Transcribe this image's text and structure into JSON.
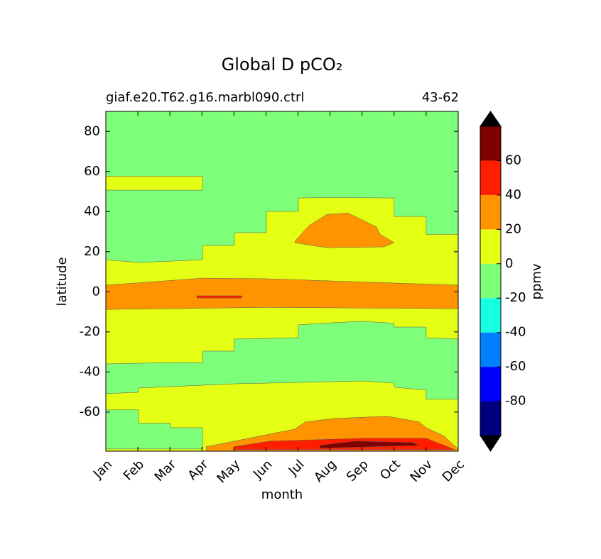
{
  "chart_data": {
    "type": "contour",
    "title": "Global D pCO₂",
    "subtitle_left": "giaf.e20.T62.g16.marbl090.ctrl",
    "subtitle_right": "43-62",
    "xlabel": "month",
    "ylabel": "latitude",
    "xlim": [
      0,
      11
    ],
    "ylim": [
      -79.5,
      90
    ],
    "xticks": [
      {
        "value": 0,
        "label": "Jan"
      },
      {
        "value": 1,
        "label": "Feb"
      },
      {
        "value": 2,
        "label": "Mar"
      },
      {
        "value": 3,
        "label": "Apr"
      },
      {
        "value": 4,
        "label": "May"
      },
      {
        "value": 5,
        "label": "Jun"
      },
      {
        "value": 6,
        "label": "Jul"
      },
      {
        "value": 7,
        "label": "Aug"
      },
      {
        "value": 8,
        "label": "Sep"
      },
      {
        "value": 9,
        "label": "Oct"
      },
      {
        "value": 10,
        "label": "Nov"
      },
      {
        "value": 11,
        "label": "Dec"
      }
    ],
    "yticks": [
      -60,
      -40,
      -20,
      0,
      20,
      40,
      60,
      80
    ],
    "background_level": -20,
    "regions": [
      {
        "level": 0,
        "points": [
          [
            0,
            16.0
          ],
          [
            1.02,
            14.6
          ],
          [
            3.02,
            16.0
          ],
          [
            3.02,
            23.1
          ],
          [
            4.01,
            23.1
          ],
          [
            4.01,
            29.5
          ],
          [
            5.01,
            29.5
          ],
          [
            5.01,
            40.1
          ],
          [
            6.01,
            40.1
          ],
          [
            6.01,
            46.8
          ],
          [
            7.01,
            47.0
          ],
          [
            9.0,
            46.8
          ],
          [
            9.0,
            37.6
          ],
          [
            10.0,
            37.6
          ],
          [
            10.0,
            28.7
          ],
          [
            11,
            28.7
          ],
          [
            11,
            -79.5
          ],
          [
            0,
            -79.5
          ]
        ]
      },
      {
        "level": 0,
        "points": [
          [
            0,
            57.7
          ],
          [
            3.02,
            57.7
          ],
          [
            3.02,
            50.7
          ],
          [
            0,
            50.7
          ]
        ]
      },
      {
        "level": -20,
        "points": [
          [
            0,
            -36.0
          ],
          [
            2.02,
            -35.3
          ],
          [
            3.02,
            -35.3
          ],
          [
            3.02,
            -29.6
          ],
          [
            4.01,
            -29.6
          ],
          [
            4.01,
            -23.6
          ],
          [
            6.01,
            -22.9
          ],
          [
            6.01,
            -16.5
          ],
          [
            7.01,
            -15.5
          ],
          [
            8.0,
            -14.7
          ],
          [
            9.0,
            -15.7
          ],
          [
            9.0,
            -17.6
          ],
          [
            10.0,
            -17.6
          ],
          [
            10.0,
            -22.9
          ],
          [
            11,
            -23.6
          ],
          [
            11,
            -53.6
          ],
          [
            10.0,
            -53.6
          ],
          [
            10.0,
            -49.0
          ],
          [
            9.0,
            -47.6
          ],
          [
            9.0,
            -45.5
          ],
          [
            8.0,
            -44.5
          ],
          [
            4.01,
            -45.9
          ],
          [
            2.02,
            -47.3
          ],
          [
            1.02,
            -48.0
          ],
          [
            1.02,
            -50.1
          ],
          [
            0,
            -50.8
          ]
        ]
      },
      {
        "level": -20,
        "points": [
          [
            0,
            -58.9
          ],
          [
            1.02,
            -58.9
          ],
          [
            1.02,
            -65.6
          ],
          [
            2.02,
            -65.6
          ],
          [
            2.02,
            -67.8
          ],
          [
            3.02,
            -67.8
          ],
          [
            3.02,
            -78.4
          ],
          [
            0,
            -78.4
          ]
        ]
      },
      {
        "level": 20,
        "points": [
          [
            0,
            3.3
          ],
          [
            3.02,
            6.8
          ],
          [
            5.01,
            6.5
          ],
          [
            11,
            3.3
          ],
          [
            11,
            -8.4
          ],
          [
            5.01,
            -7.8
          ],
          [
            0,
            -8.8
          ]
        ]
      },
      {
        "level": 40,
        "points": [
          [
            2.84,
            -2.0
          ],
          [
            4.24,
            -2.0
          ],
          [
            4.24,
            -3.1
          ],
          [
            2.84,
            -3.1
          ]
        ]
      },
      {
        "level": 20,
        "points": [
          [
            5.9,
            25.2
          ],
          [
            6.34,
            33.0
          ],
          [
            6.9,
            38.6
          ],
          [
            7.56,
            39.3
          ],
          [
            8.45,
            32.3
          ],
          [
            8.56,
            28.7
          ],
          [
            9.0,
            24.5
          ],
          [
            8.67,
            22.4
          ],
          [
            6.9,
            22.0
          ],
          [
            5.9,
            24.5
          ]
        ]
      },
      {
        "level": 20,
        "points": [
          [
            3.13,
            -77.3
          ],
          [
            4.01,
            -74.5
          ],
          [
            5.9,
            -68.5
          ],
          [
            6.23,
            -64.9
          ],
          [
            7.12,
            -63.2
          ],
          [
            8.78,
            -62.1
          ],
          [
            9.78,
            -64.9
          ],
          [
            10.0,
            -67.8
          ],
          [
            10.56,
            -72.0
          ],
          [
            11,
            -78.4
          ],
          [
            11,
            -79.5
          ],
          [
            3.13,
            -79.5
          ]
        ]
      },
      {
        "level": 40,
        "points": [
          [
            4.01,
            -77.3
          ],
          [
            5.12,
            -74.5
          ],
          [
            8.0,
            -73.1
          ],
          [
            10.0,
            -73.1
          ],
          [
            10.56,
            -76.6
          ],
          [
            10.89,
            -78.7
          ],
          [
            4.01,
            -78.7
          ]
        ]
      },
      {
        "level": 60,
        "points": [
          [
            6.68,
            -76.6
          ],
          [
            7.78,
            -74.5
          ],
          [
            9.56,
            -75.2
          ],
          [
            9.78,
            -76.6
          ],
          [
            6.68,
            -78.0
          ]
        ]
      }
    ],
    "colorbar": {
      "label": "ppmv",
      "levels": [
        -100,
        -80,
        -60,
        -40,
        -20,
        0,
        20,
        40,
        60,
        80
      ],
      "colors": [
        "#00007f",
        "#0000ff",
        "#0080ff",
        "#15ffe1",
        "#7dff7a",
        "#e4ff13",
        "#ff9400",
        "#ff1e00",
        "#7f0000"
      ],
      "under_color": "#000000",
      "over_color": "#000000",
      "ticks": [
        -80,
        -60,
        -40,
        -20,
        0,
        20,
        40,
        60
      ]
    }
  }
}
